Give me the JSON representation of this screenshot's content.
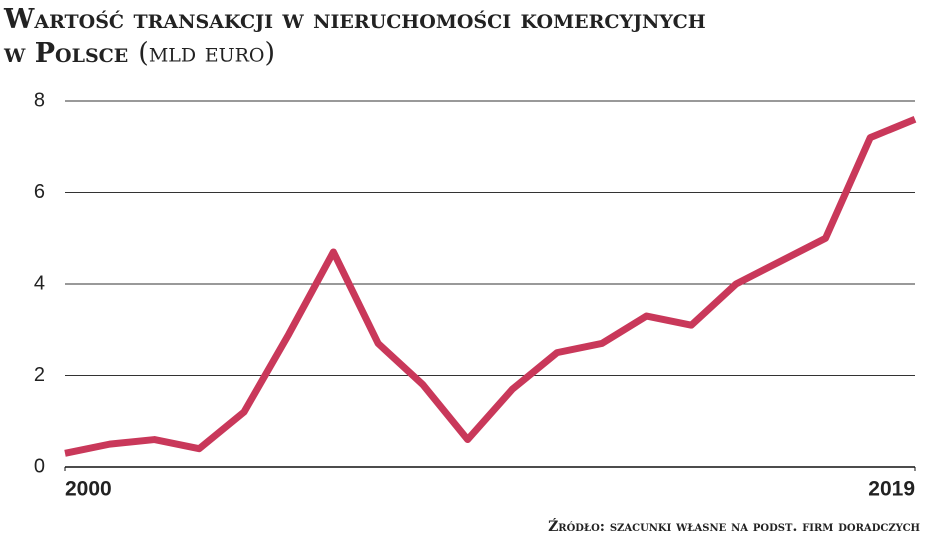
{
  "chart_data": {
    "type": "line",
    "title": "Wartość transakcji w nieruchomości komercyjnych w Polsce",
    "subtitle": "(mld euro)",
    "source": "Źródło: szacunki własne na podst. firm doradczych",
    "x": [
      2000,
      2001,
      2002,
      2003,
      2004,
      2005,
      2006,
      2007,
      2008,
      2009,
      2010,
      2011,
      2012,
      2013,
      2014,
      2015,
      2016,
      2017,
      2018,
      2019
    ],
    "values": [
      0.3,
      0.5,
      0.6,
      0.4,
      1.2,
      2.9,
      4.7,
      2.7,
      1.8,
      0.6,
      1.7,
      2.5,
      2.7,
      3.3,
      3.1,
      4.0,
      4.5,
      5.0,
      7.2,
      7.6
    ],
    "color": "#c9385a",
    "xlim": [
      2000,
      2019
    ],
    "xticks": [
      2000,
      2019
    ],
    "ylim": [
      0,
      8
    ],
    "yticks": [
      0,
      2,
      4,
      6,
      8
    ],
    "grid": true
  }
}
